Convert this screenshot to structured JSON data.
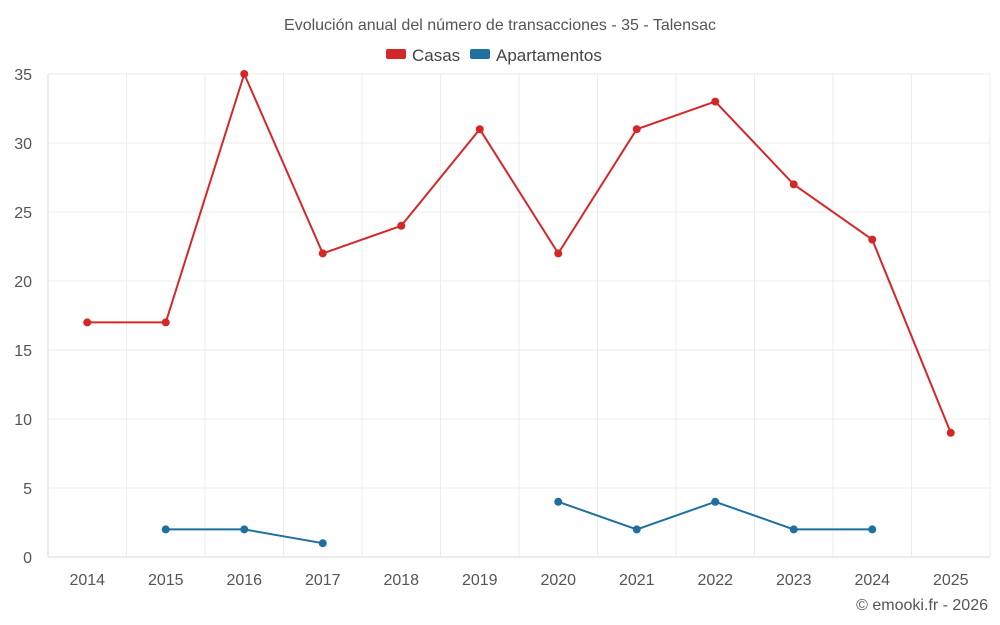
{
  "chart_data": {
    "type": "line",
    "title": "Evolución anual del número de transacciones - 35 - Talensac",
    "categories": [
      "2014",
      "2015",
      "2016",
      "2017",
      "2018",
      "2019",
      "2020",
      "2021",
      "2022",
      "2023",
      "2024",
      "2025"
    ],
    "series": [
      {
        "name": "Casas",
        "color": "#d62728",
        "values": [
          17,
          17,
          35,
          22,
          24,
          31,
          22,
          31,
          33,
          27,
          23,
          9
        ]
      },
      {
        "name": "Apartamentos",
        "color": "#1f6f9f",
        "values": [
          null,
          2,
          2,
          1,
          null,
          null,
          4,
          2,
          4,
          2,
          2,
          null
        ]
      }
    ],
    "y_ticks": [
      "0",
      "5",
      "10",
      "15",
      "20",
      "25",
      "30",
      "35"
    ],
    "ylim": [
      0,
      35
    ],
    "grid": true,
    "legend": "top-center",
    "xlabel": "",
    "ylabel": ""
  },
  "credit": "© emooki.fr - 2026"
}
